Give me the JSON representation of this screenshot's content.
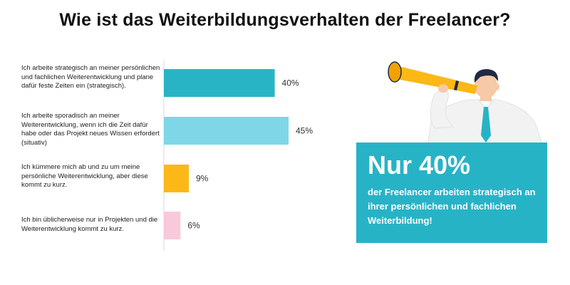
{
  "title": "Wie ist das Weiterbildungsverhalten der Freelancer?",
  "chart_data": {
    "type": "bar",
    "orientation": "horizontal",
    "categories": [
      "Ich arbeite strategisch an meiner persönlichen und fachlichen Weiterentwicklung und plane dafür feste Zeiten ein (strategisch).",
      "Ich arbeite sporadisch an meiner Weiterentwicklung, wenn ich die Zeit dafür habe oder das Projekt neues Wissen erfordert (situativ)",
      "Ich kümmere mich ab und zu um meine persönliche Weiterentwicklung, aber diese kommt zu kurz.",
      "Ich bin üblicherweise nur in Projekten und die Weiterentwicklung kommt zu kurz."
    ],
    "values": [
      40,
      45,
      9,
      6
    ],
    "value_labels": [
      "40%",
      "45%",
      "9%",
      "6%"
    ],
    "colors": [
      "#29b4c6",
      "#7fd6e6",
      "#fbb817",
      "#f9c9da"
    ],
    "xlim": [
      0,
      45
    ],
    "grid": false,
    "legend": "none"
  },
  "callout": {
    "headline": "Nur 40%",
    "text": "der Freelancer arbeiten strategisch an ihrer persönlichen und fachlichen Weiterbildung!"
  },
  "illustration": {
    "icon": "person-with-telescope-icon",
    "colors": {
      "telescope": "#fbb817",
      "shirt": "#f2f2f2",
      "tie": "#27b3c6",
      "hair": "#1f2a44",
      "skin": "#f6c9a8"
    }
  }
}
